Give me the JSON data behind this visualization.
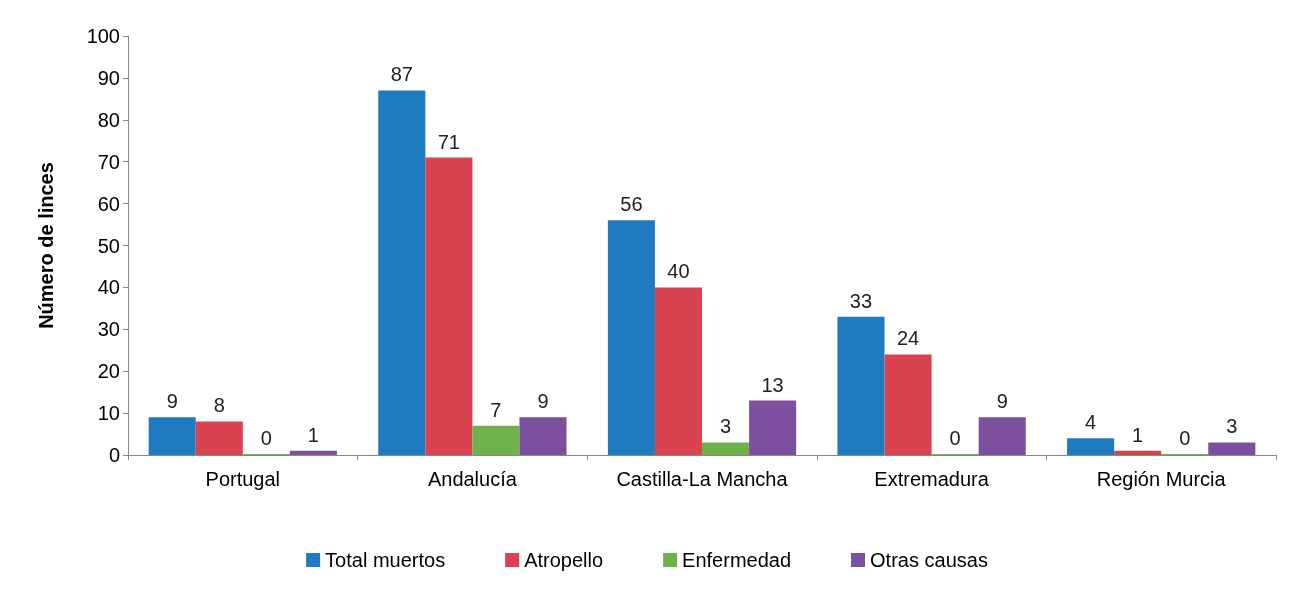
{
  "chart_data": {
    "type": "bar",
    "ylabel": "Número de linces",
    "categories": [
      "Portugal",
      "Andalucía",
      "Castilla-La Mancha",
      "Extremadura",
      "Región Murcia"
    ],
    "series": [
      {
        "name": "Total muertos",
        "color": "#1f7bbf",
        "values": [
          9,
          87,
          56,
          33,
          4
        ]
      },
      {
        "name": "Atropello",
        "color": "#d9434f",
        "values": [
          8,
          71,
          40,
          24,
          1
        ]
      },
      {
        "name": "Enfermedad",
        "color": "#6fb24a",
        "values": [
          0,
          7,
          3,
          0,
          0
        ]
      },
      {
        "name": "Otras causas",
        "color": "#7d4f9f",
        "values": [
          1,
          9,
          13,
          9,
          3
        ]
      }
    ],
    "ylim": [
      0,
      100
    ],
    "yticks": [
      0,
      10,
      20,
      30,
      40,
      50,
      60,
      70,
      80,
      90,
      100
    ],
    "grid": false,
    "legend": "bottom",
    "data_labels": true
  }
}
